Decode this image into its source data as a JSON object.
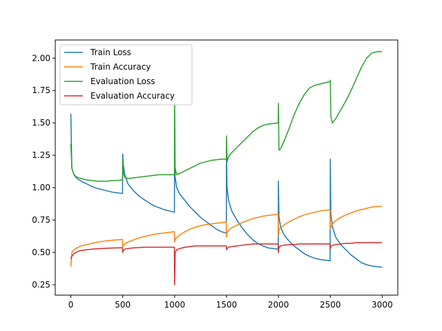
{
  "chart_data": {
    "type": "line",
    "title": "",
    "xlabel": "",
    "ylabel": "",
    "xlim": [
      -150,
      3150
    ],
    "ylim": [
      0.17,
      2.14
    ],
    "xticks": [
      0,
      500,
      1000,
      1500,
      2000,
      2500,
      3000
    ],
    "yticks": [
      0.25,
      0.5,
      0.75,
      1.0,
      1.25,
      1.5,
      1.75,
      2.0
    ],
    "xtick_labels": [
      "0",
      "500",
      "1000",
      "1500",
      "2000",
      "2500",
      "3000"
    ],
    "ytick_labels": [
      "0.25",
      "0.50",
      "0.75",
      "1.00",
      "1.25",
      "1.50",
      "1.75",
      "2.00"
    ],
    "grid": false,
    "legend_position": "top-left",
    "series": [
      {
        "name": "Train Loss",
        "color": "#1f77b4",
        "x": [
          0,
          10,
          30,
          60,
          100,
          150,
          200,
          250,
          300,
          350,
          400,
          450,
          498,
          500,
          505,
          520,
          550,
          600,
          650,
          700,
          750,
          800,
          850,
          900,
          950,
          998,
          1000,
          1005,
          1020,
          1050,
          1100,
          1150,
          1200,
          1250,
          1300,
          1350,
          1400,
          1450,
          1498,
          1500,
          1505,
          1520,
          1550,
          1600,
          1650,
          1700,
          1750,
          1800,
          1850,
          1900,
          1950,
          1998,
          2000,
          2005,
          2020,
          2050,
          2100,
          2150,
          2200,
          2250,
          2300,
          2350,
          2400,
          2450,
          2498,
          2500,
          2505,
          2520,
          2550,
          2600,
          2650,
          2700,
          2750,
          2800,
          2850,
          2900,
          2950,
          2998
        ],
        "y": [
          1.57,
          1.15,
          1.1,
          1.07,
          1.05,
          1.03,
          1.01,
          0.995,
          0.985,
          0.975,
          0.965,
          0.96,
          0.955,
          1.26,
          1.18,
          1.1,
          1.03,
          0.98,
          0.94,
          0.91,
          0.885,
          0.86,
          0.845,
          0.83,
          0.82,
          0.81,
          1.34,
          1.08,
          1.0,
          0.95,
          0.9,
          0.85,
          0.81,
          0.77,
          0.74,
          0.71,
          0.68,
          0.66,
          0.65,
          1.28,
          1.0,
          0.9,
          0.82,
          0.75,
          0.69,
          0.64,
          0.6,
          0.57,
          0.55,
          0.535,
          0.53,
          0.525,
          1.05,
          0.78,
          0.7,
          0.64,
          0.59,
          0.55,
          0.52,
          0.49,
          0.47,
          0.455,
          0.445,
          0.44,
          0.435,
          1.22,
          0.8,
          0.7,
          0.62,
          0.56,
          0.52,
          0.48,
          0.45,
          0.42,
          0.405,
          0.395,
          0.39,
          0.385
        ]
      },
      {
        "name": "Train Accuracy",
        "color": "#ff7f0e",
        "x": [
          0,
          10,
          30,
          60,
          100,
          150,
          200,
          250,
          300,
          350,
          400,
          450,
          498,
          500,
          505,
          520,
          550,
          600,
          650,
          700,
          750,
          800,
          850,
          900,
          950,
          998,
          1000,
          1005,
          1020,
          1050,
          1100,
          1150,
          1200,
          1250,
          1300,
          1350,
          1400,
          1450,
          1498,
          1500,
          1505,
          1520,
          1550,
          1600,
          1650,
          1700,
          1750,
          1800,
          1850,
          1900,
          1950,
          1998,
          2000,
          2005,
          2020,
          2050,
          2100,
          2150,
          2200,
          2250,
          2300,
          2350,
          2400,
          2450,
          2498,
          2500,
          2505,
          2520,
          2550,
          2600,
          2650,
          2700,
          2750,
          2800,
          2850,
          2900,
          2950,
          2998
        ],
        "y": [
          0.39,
          0.5,
          0.52,
          0.535,
          0.55,
          0.56,
          0.57,
          0.578,
          0.585,
          0.59,
          0.594,
          0.597,
          0.6,
          0.54,
          0.555,
          0.565,
          0.58,
          0.595,
          0.61,
          0.62,
          0.63,
          0.64,
          0.645,
          0.65,
          0.655,
          0.66,
          0.58,
          0.6,
          0.615,
          0.635,
          0.66,
          0.68,
          0.695,
          0.705,
          0.715,
          0.72,
          0.725,
          0.73,
          0.735,
          0.62,
          0.65,
          0.67,
          0.69,
          0.71,
          0.73,
          0.745,
          0.76,
          0.77,
          0.78,
          0.785,
          0.79,
          0.795,
          0.63,
          0.67,
          0.69,
          0.71,
          0.735,
          0.755,
          0.775,
          0.79,
          0.8,
          0.81,
          0.82,
          0.825,
          0.83,
          0.68,
          0.7,
          0.72,
          0.745,
          0.77,
          0.79,
          0.805,
          0.82,
          0.83,
          0.84,
          0.85,
          0.855,
          0.855
        ]
      },
      {
        "name": "Evaluation Loss",
        "color": "#2ca02c",
        "x": [
          0,
          10,
          30,
          60,
          100,
          150,
          200,
          250,
          300,
          350,
          400,
          450,
          498,
          500,
          505,
          520,
          550,
          600,
          650,
          700,
          750,
          800,
          850,
          900,
          950,
          998,
          1000,
          1005,
          1020,
          1050,
          1100,
          1150,
          1200,
          1250,
          1300,
          1350,
          1400,
          1450,
          1498,
          1500,
          1505,
          1520,
          1550,
          1600,
          1650,
          1700,
          1750,
          1800,
          1850,
          1900,
          1950,
          1998,
          2000,
          2005,
          2020,
          2050,
          2100,
          2150,
          2200,
          2250,
          2300,
          2350,
          2400,
          2450,
          2498,
          2500,
          2505,
          2520,
          2550,
          2600,
          2650,
          2700,
          2750,
          2800,
          2850,
          2900,
          2950,
          2998
        ],
        "y": [
          1.34,
          1.15,
          1.1,
          1.08,
          1.07,
          1.06,
          1.055,
          1.05,
          1.05,
          1.05,
          1.055,
          1.055,
          1.06,
          1.22,
          1.12,
          1.08,
          1.07,
          1.075,
          1.08,
          1.085,
          1.09,
          1.095,
          1.1,
          1.1,
          1.1,
          1.1,
          1.69,
          1.15,
          1.1,
          1.11,
          1.13,
          1.15,
          1.17,
          1.19,
          1.2,
          1.21,
          1.215,
          1.22,
          1.22,
          1.4,
          1.2,
          1.24,
          1.27,
          1.31,
          1.35,
          1.39,
          1.43,
          1.46,
          1.48,
          1.49,
          1.495,
          1.5,
          1.65,
          1.29,
          1.3,
          1.35,
          1.45,
          1.56,
          1.65,
          1.72,
          1.77,
          1.79,
          1.8,
          1.81,
          1.82,
          1.83,
          1.55,
          1.5,
          1.53,
          1.6,
          1.67,
          1.75,
          1.84,
          1.93,
          2.0,
          2.04,
          2.05,
          2.05
        ]
      },
      {
        "name": "Evaluation Accuracy",
        "color": "#d62728",
        "x": [
          0,
          10,
          30,
          60,
          100,
          150,
          200,
          250,
          300,
          350,
          400,
          450,
          498,
          500,
          505,
          520,
          550,
          600,
          650,
          700,
          750,
          800,
          850,
          900,
          950,
          998,
          1000,
          1005,
          1020,
          1050,
          1100,
          1150,
          1200,
          1250,
          1300,
          1350,
          1400,
          1450,
          1498,
          1500,
          1505,
          1520,
          1550,
          1600,
          1650,
          1700,
          1750,
          1800,
          1850,
          1900,
          1950,
          1998,
          2000,
          2005,
          2020,
          2050,
          2100,
          2150,
          2200,
          2250,
          2300,
          2350,
          2400,
          2450,
          2498,
          2500,
          2505,
          2520,
          2550,
          2600,
          2650,
          2700,
          2750,
          2800,
          2850,
          2900,
          2950,
          2998
        ],
        "y": [
          0.45,
          0.47,
          0.49,
          0.505,
          0.515,
          0.52,
          0.525,
          0.528,
          0.53,
          0.532,
          0.534,
          0.535,
          0.536,
          0.5,
          0.515,
          0.525,
          0.53,
          0.535,
          0.537,
          0.54,
          0.54,
          0.54,
          0.54,
          0.54,
          0.54,
          0.54,
          0.25,
          0.5,
          0.52,
          0.53,
          0.54,
          0.545,
          0.55,
          0.55,
          0.55,
          0.55,
          0.55,
          0.55,
          0.55,
          0.52,
          0.53,
          0.54,
          0.545,
          0.55,
          0.555,
          0.56,
          0.565,
          0.565,
          0.565,
          0.565,
          0.565,
          0.565,
          0.5,
          0.54,
          0.55,
          0.555,
          0.56,
          0.56,
          0.565,
          0.565,
          0.565,
          0.565,
          0.565,
          0.565,
          0.565,
          0.53,
          0.545,
          0.555,
          0.56,
          0.565,
          0.57,
          0.57,
          0.575,
          0.575,
          0.575,
          0.575,
          0.575,
          0.575
        ]
      }
    ]
  }
}
